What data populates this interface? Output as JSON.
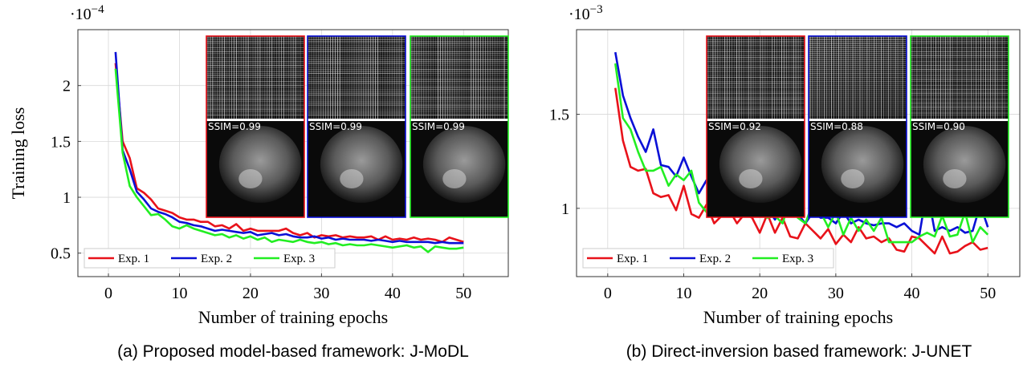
{
  "chart_data": [
    {
      "type": "line",
      "caption": "(a) Proposed model-based framework: J-MoDL",
      "x_label": "Number of training epochs",
      "y_label": "Training loss",
      "y_scale": {
        "base": "·10",
        "exponent": "−4"
      },
      "xlim": [
        -4.3,
        56.3
      ],
      "xticks": [
        0,
        10,
        20,
        30,
        40,
        50
      ],
      "ylim": [
        0.29,
        2.5
      ],
      "yticks": [
        0.5,
        1,
        1.5,
        2
      ],
      "grid": true,
      "legend": "lower left",
      "x": [
        1,
        2,
        3,
        4,
        5,
        6,
        7,
        8,
        9,
        10,
        11,
        12,
        13,
        14,
        15,
        16,
        17,
        18,
        19,
        20,
        21,
        22,
        23,
        24,
        25,
        26,
        27,
        28,
        29,
        30,
        31,
        32,
        33,
        34,
        35,
        36,
        37,
        38,
        39,
        40,
        41,
        42,
        43,
        44,
        45,
        46,
        47,
        48,
        49,
        50
      ],
      "series": [
        {
          "name": "Exp. 1",
          "color": "#e8121a",
          "values": [
            2.2,
            1.5,
            1.35,
            1.08,
            1.04,
            0.98,
            0.9,
            0.88,
            0.86,
            0.82,
            0.8,
            0.8,
            0.78,
            0.78,
            0.74,
            0.75,
            0.72,
            0.76,
            0.7,
            0.72,
            0.7,
            0.7,
            0.7,
            0.7,
            0.72,
            0.68,
            0.66,
            0.68,
            0.64,
            0.66,
            0.65,
            0.66,
            0.64,
            0.65,
            0.64,
            0.64,
            0.65,
            0.62,
            0.65,
            0.62,
            0.63,
            0.62,
            0.64,
            0.62,
            0.63,
            0.62,
            0.6,
            0.64,
            0.62,
            0.6
          ]
        },
        {
          "name": "Exp. 2",
          "color": "#0a10d6",
          "values": [
            2.3,
            1.42,
            1.25,
            1.05,
            0.98,
            0.9,
            0.87,
            0.85,
            0.82,
            0.78,
            0.77,
            0.75,
            0.74,
            0.72,
            0.7,
            0.71,
            0.7,
            0.69,
            0.68,
            0.69,
            0.66,
            0.67,
            0.68,
            0.66,
            0.67,
            0.65,
            0.64,
            0.64,
            0.65,
            0.63,
            0.64,
            0.62,
            0.63,
            0.62,
            0.62,
            0.62,
            0.61,
            0.62,
            0.61,
            0.6,
            0.61,
            0.6,
            0.6,
            0.6,
            0.6,
            0.59,
            0.6,
            0.59,
            0.59,
            0.59
          ]
        },
        {
          "name": "Exp. 3",
          "color": "#22ee22",
          "values": [
            2.15,
            1.4,
            1.1,
            1.0,
            0.92,
            0.84,
            0.85,
            0.8,
            0.74,
            0.72,
            0.75,
            0.72,
            0.7,
            0.68,
            0.66,
            0.67,
            0.64,
            0.66,
            0.63,
            0.65,
            0.62,
            0.64,
            0.6,
            0.62,
            0.61,
            0.6,
            0.62,
            0.6,
            0.59,
            0.6,
            0.58,
            0.59,
            0.57,
            0.58,
            0.57,
            0.57,
            0.58,
            0.57,
            0.56,
            0.55,
            0.56,
            0.57,
            0.55,
            0.56,
            0.51,
            0.56,
            0.55,
            0.54,
            0.54,
            0.55
          ]
        }
      ],
      "insets": [
        {
          "label": "SSIM=0.99",
          "color": "#e8121a"
        },
        {
          "label": "SSIM=0.99",
          "color": "#0a10d6"
        },
        {
          "label": "SSIM=0.99",
          "color": "#22ee22"
        }
      ]
    },
    {
      "type": "line",
      "caption": "(b) Direct-inversion based framework: J-UNET",
      "x_label": "Number of training epochs",
      "y_scale": {
        "base": "·10",
        "exponent": "−3"
      },
      "xlim": [
        -4.1,
        54.2
      ],
      "xticks": [
        0,
        10,
        20,
        30,
        40,
        50
      ],
      "ylim": [
        0.637,
        1.95
      ],
      "yticks": [
        1,
        1.5
      ],
      "grid": true,
      "legend": "lower left",
      "x": [
        1,
        2,
        3,
        4,
        5,
        6,
        7,
        8,
        9,
        10,
        11,
        12,
        13,
        14,
        15,
        16,
        17,
        18,
        19,
        20,
        21,
        22,
        23,
        24,
        25,
        26,
        27,
        28,
        29,
        30,
        31,
        32,
        33,
        34,
        35,
        36,
        37,
        38,
        39,
        40,
        41,
        42,
        43,
        44,
        45,
        46,
        47,
        48,
        49,
        50
      ],
      "series": [
        {
          "name": "Exp. 1",
          "color": "#e8121a",
          "values": [
            1.64,
            1.36,
            1.22,
            1.2,
            1.21,
            1.08,
            1.06,
            1.07,
            0.99,
            1.12,
            0.97,
            0.95,
            1.02,
            0.92,
            0.96,
            0.99,
            0.92,
            0.97,
            0.95,
            0.87,
            0.97,
            0.87,
            0.95,
            0.85,
            0.84,
            0.92,
            0.88,
            0.84,
            0.89,
            0.81,
            0.86,
            0.82,
            0.9,
            0.84,
            0.85,
            0.82,
            0.84,
            0.78,
            0.77,
            0.85,
            0.84,
            0.8,
            0.76,
            0.85,
            0.76,
            0.77,
            0.8,
            0.82,
            0.78,
            0.79
          ]
        },
        {
          "name": "Exp. 2",
          "color": "#0a10d6",
          "values": [
            1.83,
            1.6,
            1.48,
            1.38,
            1.3,
            1.42,
            1.23,
            1.22,
            1.17,
            1.27,
            1.17,
            1.08,
            1.15,
            1.06,
            1.08,
            1.05,
            1.06,
            1.02,
            0.98,
            0.96,
            1.0,
            0.94,
            1.0,
            0.98,
            0.97,
            0.92,
            0.98,
            0.95,
            0.95,
            0.92,
            0.98,
            0.92,
            0.94,
            0.92,
            0.91,
            0.92,
            0.92,
            0.9,
            0.92,
            0.88,
            0.86,
            1.1,
            0.88,
            0.9,
            0.88,
            0.9,
            0.87,
            0.88,
            1.02,
            0.9
          ]
        },
        {
          "name": "Exp. 3",
          "color": "#22ee22",
          "values": [
            1.77,
            1.48,
            1.42,
            1.3,
            1.2,
            1.2,
            1.22,
            1.12,
            1.18,
            1.15,
            1.2,
            1.03,
            0.98,
            1.05,
            0.98,
            1.02,
            1.0,
            0.96,
            1.02,
            0.97,
            0.95,
            0.96,
            0.92,
            1.05,
            0.95,
            0.92,
            1.03,
            0.98,
            0.9,
            0.98,
            0.86,
            0.95,
            0.88,
            0.94,
            0.88,
            0.95,
            0.82,
            0.82,
            0.82,
            0.82,
            0.85,
            0.87,
            0.85,
            0.96,
            0.85,
            0.86,
            0.98,
            0.82,
            0.9,
            0.86
          ]
        }
      ],
      "insets": [
        {
          "label": "SSIM=0.92",
          "color": "#e8121a"
        },
        {
          "label": "SSIM=0.88",
          "color": "#0a10d6"
        },
        {
          "label": "SSIM=0.90",
          "color": "#22ee22"
        }
      ]
    }
  ]
}
